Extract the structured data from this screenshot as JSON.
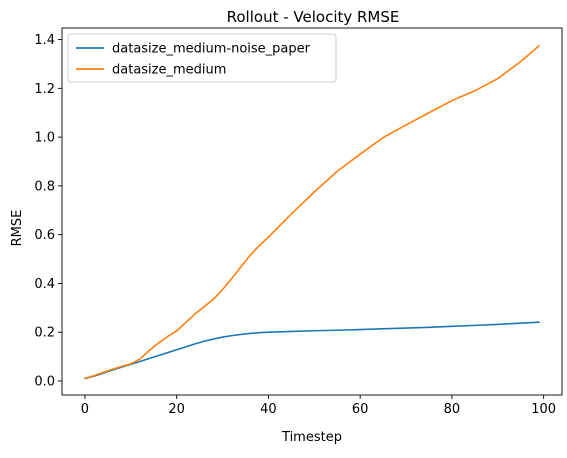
{
  "chart_data": {
    "type": "line",
    "title": "Rollout - Velocity RMSE",
    "xlabel": "Timestep",
    "ylabel": "RMSE",
    "xlim": [
      -5,
      104
    ],
    "ylim": [
      -0.0575,
      1.4475
    ],
    "xticks": [
      0,
      20,
      40,
      60,
      80,
      100
    ],
    "yticks": [
      0.0,
      0.2,
      0.4,
      0.6,
      0.8,
      1.0,
      1.2,
      1.4
    ],
    "xtick_labels": [
      "0",
      "20",
      "40",
      "60",
      "80",
      "100"
    ],
    "ytick_labels": [
      "0.0",
      "0.2",
      "0.4",
      "0.6",
      "0.8",
      "1.0",
      "1.2",
      "1.4"
    ],
    "grid": false,
    "legend_position": "top-left",
    "series": [
      {
        "name": "datasize_medium-noise_paper",
        "color": "#1f77b4",
        "x": [
          0,
          2,
          4,
          6,
          8,
          10,
          12,
          14,
          16,
          18,
          20,
          22,
          24,
          26,
          28,
          30,
          32,
          34,
          36,
          38,
          40,
          45,
          50,
          55,
          60,
          65,
          70,
          75,
          80,
          85,
          90,
          95,
          99
        ],
        "y": [
          0.01,
          0.02,
          0.032,
          0.045,
          0.057,
          0.068,
          0.08,
          0.092,
          0.104,
          0.116,
          0.128,
          0.14,
          0.152,
          0.163,
          0.172,
          0.18,
          0.186,
          0.191,
          0.195,
          0.198,
          0.2,
          0.203,
          0.206,
          0.208,
          0.211,
          0.214,
          0.217,
          0.22,
          0.224,
          0.228,
          0.232,
          0.237,
          0.241
        ]
      },
      {
        "name": "datasize_medium",
        "color": "#ff7f0e",
        "x": [
          0,
          2,
          4,
          6,
          8,
          10,
          12,
          14,
          16,
          18,
          20,
          22,
          24,
          26,
          28,
          30,
          32,
          34,
          36,
          38,
          40,
          45,
          50,
          55,
          60,
          65,
          70,
          75,
          80,
          85,
          90,
          95,
          99
        ],
        "y": [
          0.01,
          0.022,
          0.035,
          0.048,
          0.06,
          0.07,
          0.09,
          0.125,
          0.155,
          0.182,
          0.205,
          0.24,
          0.275,
          0.305,
          0.335,
          0.375,
          0.42,
          0.468,
          0.515,
          0.555,
          0.59,
          0.685,
          0.775,
          0.86,
          0.93,
          0.998,
          1.05,
          1.1,
          1.15,
          1.19,
          1.24,
          1.31,
          1.375
        ]
      }
    ]
  }
}
